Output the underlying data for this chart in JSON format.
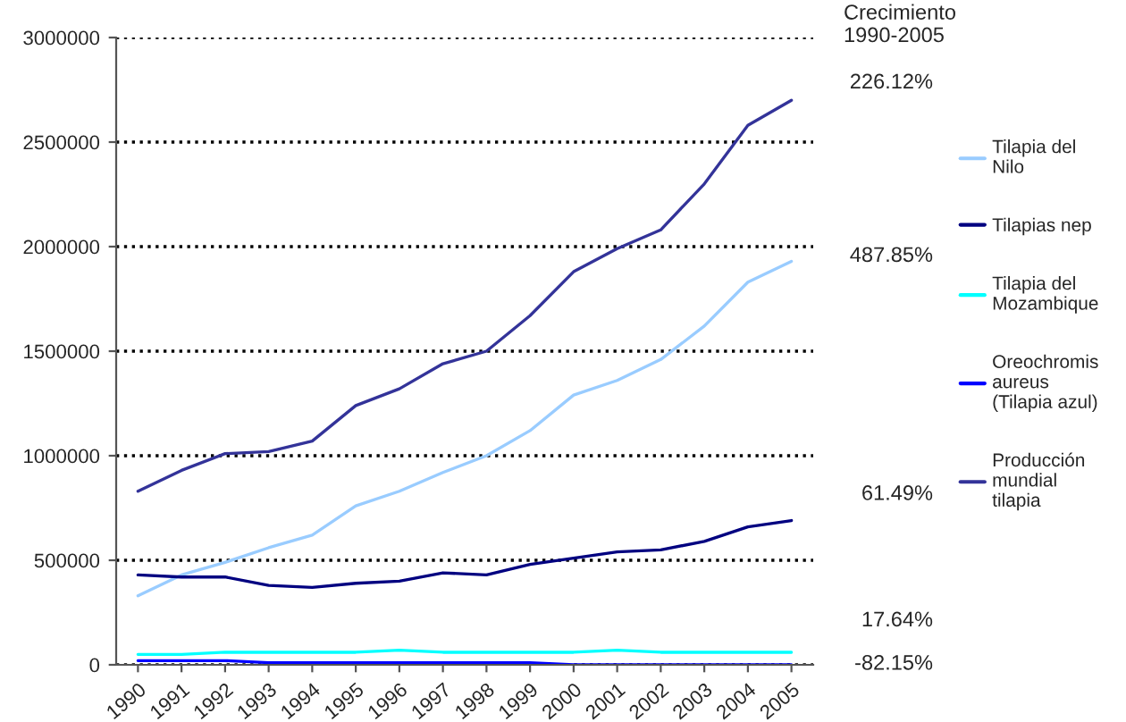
{
  "chart_data": {
    "type": "line",
    "categories": [
      "1990",
      "1991",
      "1992",
      "1993",
      "1994",
      "1995",
      "1996",
      "1997",
      "1998",
      "1999",
      "2000",
      "2001",
      "2002",
      "2003",
      "2004",
      "2005"
    ],
    "series": [
      {
        "name": "Tilapia del Nilo",
        "color": "#99ccff",
        "values": [
          330000,
          430000,
          490000,
          560000,
          620000,
          760000,
          830000,
          920000,
          1000000,
          1120000,
          1290000,
          1360000,
          1460000,
          1620000,
          1830000,
          1930000
        ]
      },
      {
        "name": "Tilapias nep",
        "color": "#000080",
        "values": [
          430000,
          420000,
          420000,
          380000,
          370000,
          390000,
          400000,
          440000,
          430000,
          480000,
          510000,
          540000,
          550000,
          590000,
          660000,
          690000
        ]
      },
      {
        "name": "Tilapia del Mozambique",
        "color": "#00ffff",
        "values": [
          50000,
          50000,
          60000,
          60000,
          60000,
          60000,
          70000,
          60000,
          60000,
          60000,
          60000,
          70000,
          60000,
          60000,
          60000,
          60000
        ]
      },
      {
        "name": "Oreochromis aureus (Tilapia azul)",
        "color": "#0000ff",
        "values": [
          20000,
          20000,
          20000,
          10000,
          10000,
          10000,
          10000,
          10000,
          10000,
          10000,
          0,
          0,
          0,
          0,
          0,
          0
        ]
      },
      {
        "name": "Producción mundial tilapia",
        "color": "#333399",
        "values": [
          830000,
          930000,
          1010000,
          1020000,
          1070000,
          1240000,
          1320000,
          1440000,
          1500000,
          1670000,
          1880000,
          1990000,
          2080000,
          2300000,
          2580000,
          2700000
        ]
      }
    ],
    "ylim": [
      0,
      3000000
    ],
    "yticks": [
      0,
      500000,
      1000000,
      1500000,
      2000000,
      2500000,
      3000000
    ],
    "grid": "y",
    "legend": "right",
    "marker": "none",
    "line_style": "solid",
    "annotations": [
      "Crecimiento\n1990-2005",
      "226.12%",
      "487.85%",
      "61.49%",
      "17.64%",
      "-82.15%"
    ]
  }
}
